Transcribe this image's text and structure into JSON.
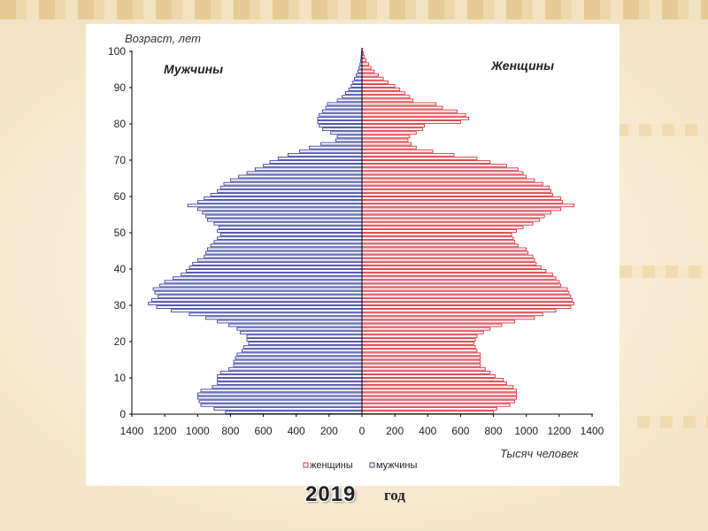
{
  "slide": {
    "year": "2019",
    "year_word": "год"
  },
  "chart_data": {
    "type": "population_pyramid",
    "ylabel": "Возраст, лет",
    "xlabel": "Тысяч человек",
    "left_title": "Мужчины",
    "right_title": "Женщины",
    "x_ticks_left": [
      "1400",
      "1200",
      "1000",
      "800",
      "600",
      "400",
      "200",
      "0"
    ],
    "x_ticks_right": [
      "200",
      "400",
      "600",
      "800",
      "1000",
      "1200",
      "1400"
    ],
    "y_ticks": [
      "0",
      "10",
      "20",
      "30",
      "40",
      "50",
      "60",
      "70",
      "80",
      "90",
      "100"
    ],
    "xlim": [
      -1400,
      1400
    ],
    "ylim": [
      0,
      100
    ],
    "legend": [
      {
        "name": "женщины",
        "color": "#d9303a"
      },
      {
        "name": "мужчины",
        "color": "#3a3f9f"
      }
    ],
    "colors": {
      "male": "#3a3f9f",
      "female": "#d9303a",
      "axis": "#000000"
    },
    "ages": [
      0,
      1,
      2,
      3,
      4,
      5,
      6,
      7,
      8,
      9,
      10,
      11,
      12,
      13,
      14,
      15,
      16,
      17,
      18,
      19,
      20,
      21,
      22,
      23,
      24,
      25,
      26,
      27,
      28,
      29,
      30,
      31,
      32,
      33,
      34,
      35,
      36,
      37,
      38,
      39,
      40,
      41,
      42,
      43,
      44,
      45,
      46,
      47,
      48,
      49,
      50,
      51,
      52,
      53,
      54,
      55,
      56,
      57,
      58,
      59,
      60,
      61,
      62,
      63,
      64,
      65,
      66,
      67,
      68,
      69,
      70,
      71,
      72,
      73,
      74,
      75,
      76,
      77,
      78,
      79,
      80,
      81,
      82,
      83,
      84,
      85,
      86,
      87,
      88,
      89,
      90,
      91,
      92,
      93,
      94,
      95,
      96,
      97,
      98,
      99,
      100
    ],
    "male": [
      830,
      900,
      980,
      990,
      1000,
      1000,
      980,
      910,
      880,
      880,
      880,
      860,
      810,
      780,
      780,
      770,
      760,
      730,
      720,
      690,
      700,
      700,
      740,
      760,
      810,
      880,
      950,
      1050,
      1160,
      1250,
      1300,
      1280,
      1240,
      1260,
      1270,
      1230,
      1200,
      1150,
      1100,
      1070,
      1050,
      1030,
      1000,
      960,
      950,
      940,
      920,
      900,
      880,
      860,
      880,
      870,
      900,
      940,
      950,
      970,
      1000,
      1060,
      1000,
      960,
      920,
      880,
      860,
      840,
      800,
      750,
      700,
      650,
      600,
      560,
      510,
      450,
      380,
      320,
      250,
      160,
      150,
      190,
      240,
      260,
      270,
      270,
      260,
      240,
      220,
      210,
      150,
      120,
      100,
      80,
      65,
      55,
      45,
      35,
      25,
      18,
      12,
      8,
      5,
      3,
      2
    ],
    "female": [
      800,
      820,
      900,
      930,
      940,
      940,
      940,
      920,
      880,
      860,
      810,
      780,
      750,
      720,
      720,
      720,
      720,
      700,
      690,
      680,
      690,
      700,
      740,
      780,
      850,
      930,
      1050,
      1100,
      1180,
      1270,
      1290,
      1280,
      1270,
      1260,
      1250,
      1210,
      1200,
      1180,
      1160,
      1120,
      1090,
      1060,
      1050,
      1040,
      1010,
      1000,
      950,
      930,
      920,
      910,
      940,
      980,
      1040,
      1080,
      1110,
      1150,
      1210,
      1290,
      1220,
      1210,
      1160,
      1150,
      1140,
      1100,
      1050,
      1000,
      980,
      950,
      880,
      780,
      700,
      560,
      430,
      330,
      300,
      280,
      290,
      330,
      370,
      380,
      600,
      650,
      630,
      580,
      490,
      450,
      310,
      290,
      260,
      230,
      200,
      160,
      130,
      100,
      75,
      55,
      40,
      25,
      15,
      8,
      4
    ]
  }
}
